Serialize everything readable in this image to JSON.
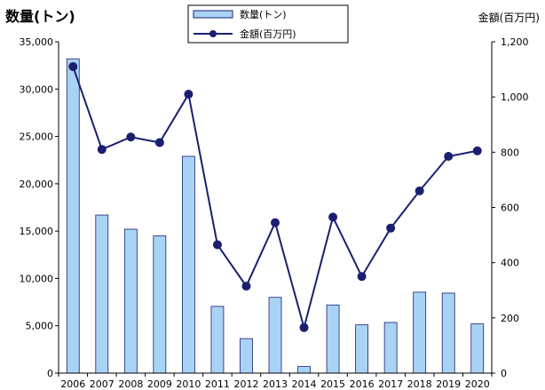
{
  "chart_data": {
    "type": "bar+line",
    "categories": [
      "2006",
      "2007",
      "2008",
      "2009",
      "2010",
      "2011",
      "2012",
      "2013",
      "2014",
      "2015",
      "2016",
      "2017",
      "2018",
      "2019",
      "2020"
    ],
    "series": [
      {
        "name": "数量(トン)",
        "kind": "bar",
        "axis": "left",
        "color": "#a9d3f5",
        "values": [
          33200,
          16700,
          15200,
          14500,
          22900,
          7050,
          3650,
          8000,
          700,
          7200,
          5100,
          5350,
          8550,
          8450,
          5200
        ]
      },
      {
        "name": "金額(百万円)",
        "kind": "line",
        "axis": "right",
        "color": "#1a1f70",
        "values": [
          1110,
          810,
          855,
          835,
          1010,
          465,
          315,
          545,
          165,
          565,
          350,
          525,
          660,
          785,
          805
        ]
      }
    ],
    "y_left": {
      "label": "数量(トン)",
      "range": [
        0,
        35000
      ],
      "ticks": [
        "0",
        "5,000",
        "10,000",
        "15,000",
        "20,000",
        "25,000",
        "30,000",
        "35,000"
      ],
      "tick_values": [
        0,
        5000,
        10000,
        15000,
        20000,
        25000,
        30000,
        35000
      ]
    },
    "y_right": {
      "label": "金額(百万円)",
      "range": [
        0,
        1200
      ],
      "ticks": [
        "0",
        "200",
        "400",
        "600",
        "800",
        "1,000",
        "1,200"
      ],
      "tick_values": [
        0,
        200,
        400,
        600,
        800,
        1000,
        1200
      ]
    },
    "legend": {
      "placement": "top-center",
      "entries": [
        "数量(トン)",
        "金額(百万円)"
      ]
    },
    "grid": false
  }
}
